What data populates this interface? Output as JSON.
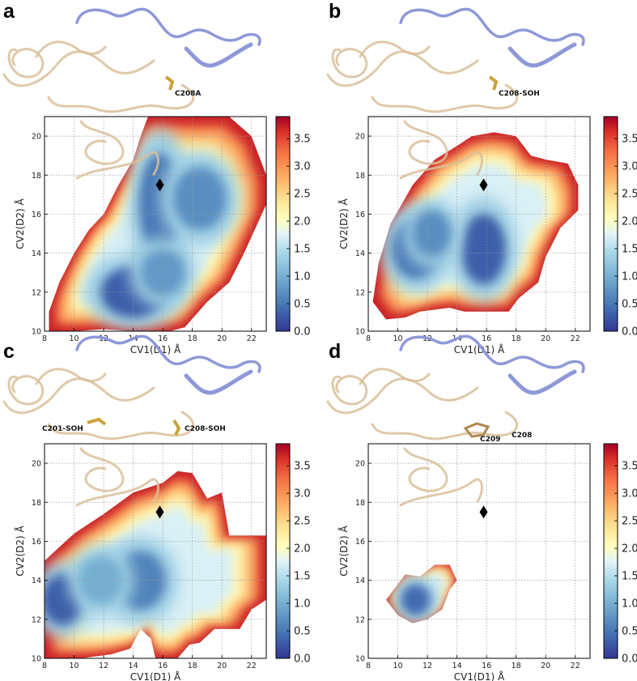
{
  "chart_data": [
    {
      "panel": "a",
      "type": "heatmap",
      "xlabel": "CV1(D1) Å",
      "ylabel": "CV2(D2) Å",
      "xlim": [
        8,
        23
      ],
      "ylim": [
        10,
        21
      ],
      "xticks": [
        8,
        10,
        12,
        14,
        16,
        18,
        20,
        22
      ],
      "yticks": [
        10,
        12,
        14,
        16,
        18,
        20
      ],
      "colorbar": {
        "ticks": [
          "0.0",
          "0.5",
          "1.0",
          "1.5",
          "2.0",
          "2.5",
          "3.0",
          "3.5"
        ],
        "range": [
          0,
          3.9
        ]
      },
      "marker": {
        "shape": "diamond",
        "x": 15.8,
        "y": 17.5
      },
      "residue_labels": [
        "C208A"
      ],
      "outline": [
        [
          8.3,
          11
        ],
        [
          9,
          12.5
        ],
        [
          10,
          14
        ],
        [
          11,
          15.2
        ],
        [
          12,
          16
        ],
        [
          13,
          17.5
        ],
        [
          14,
          18.8
        ],
        [
          14.5,
          20
        ],
        [
          15,
          21
        ],
        [
          20.5,
          21
        ],
        [
          22,
          20
        ],
        [
          23,
          18
        ],
        [
          23,
          16.5
        ],
        [
          21.5,
          14
        ],
        [
          20.5,
          12.5
        ],
        [
          19,
          11.5
        ],
        [
          17.5,
          10.2
        ],
        [
          16.5,
          10
        ],
        [
          14,
          10
        ],
        [
          12,
          10.1
        ],
        [
          10,
          10
        ],
        [
          8.3,
          10
        ]
      ],
      "minima": [
        {
          "x": 14,
          "y": 12,
          "value": 0.1,
          "rx": 2.2,
          "ry": 1.3
        },
        {
          "x": 15.8,
          "y": 16.5,
          "value": 0.3,
          "rx": 1.4,
          "ry": 2.6
        },
        {
          "x": 18.5,
          "y": 16.8,
          "value": 0.5,
          "rx": 1.8,
          "ry": 1.6
        },
        {
          "x": 16,
          "y": 13,
          "value": 0.6,
          "rx": 1.5,
          "ry": 1.2
        }
      ]
    },
    {
      "panel": "b",
      "type": "heatmap",
      "xlabel": "CV1(D1) Å",
      "ylabel": "CV2(D2) Å",
      "xlim": [
        8,
        23
      ],
      "ylim": [
        10,
        21
      ],
      "xticks": [
        8,
        10,
        12,
        14,
        16,
        18,
        20,
        22
      ],
      "yticks": [
        10,
        12,
        14,
        16,
        18,
        20
      ],
      "colorbar": {
        "ticks": [
          "0.0",
          "0.5",
          "1.0",
          "1.5",
          "2.0",
          "2.5",
          "3.0",
          "3.5"
        ],
        "range": [
          0,
          3.9
        ]
      },
      "marker": {
        "shape": "diamond",
        "x": 15.8,
        "y": 17.5
      },
      "residue_labels": [
        "C208-SOH"
      ],
      "outline": [
        [
          8.3,
          11.5
        ],
        [
          8.7,
          13.5
        ],
        [
          9.5,
          15.5
        ],
        [
          11,
          17.5
        ],
        [
          12.5,
          18.8
        ],
        [
          14,
          19.5
        ],
        [
          15,
          20
        ],
        [
          16.5,
          20.2
        ],
        [
          18,
          20
        ],
        [
          19,
          19
        ],
        [
          20,
          18.8
        ],
        [
          21.5,
          18.6
        ],
        [
          22.2,
          17.5
        ],
        [
          22.2,
          16.2
        ],
        [
          21,
          15.3
        ],
        [
          20,
          13.8
        ],
        [
          19.5,
          12.5
        ],
        [
          18.2,
          11.7
        ],
        [
          17.5,
          11
        ],
        [
          14.5,
          11
        ],
        [
          13.5,
          11.2
        ],
        [
          11.5,
          11
        ],
        [
          10.5,
          10.7
        ],
        [
          9.2,
          10.6
        ]
      ],
      "minima": [
        {
          "x": 15.8,
          "y": 14.2,
          "value": 0.1,
          "rx": 1.5,
          "ry": 1.8
        },
        {
          "x": 11.2,
          "y": 14.2,
          "value": 0.3,
          "rx": 1.6,
          "ry": 1.5
        },
        {
          "x": 12.3,
          "y": 15,
          "value": 0.5,
          "rx": 1.3,
          "ry": 1.2
        }
      ]
    },
    {
      "panel": "c",
      "type": "heatmap",
      "xlabel": "CV1(D1) Å",
      "ylabel": "CV2(D2) Å",
      "xlim": [
        8,
        23
      ],
      "ylim": [
        10,
        21
      ],
      "xticks": [
        8,
        10,
        12,
        14,
        16,
        18,
        20,
        22
      ],
      "yticks": [
        10,
        12,
        14,
        16,
        18,
        20
      ],
      "colorbar": {
        "ticks": [
          "0.0",
          "0.5",
          "1.0",
          "1.5",
          "2.0",
          "2.5",
          "3.0",
          "3.5"
        ],
        "range": [
          0,
          3.9
        ]
      },
      "marker": {
        "shape": "diamond",
        "x": 15.8,
        "y": 17.5
      },
      "residue_labels": [
        "C201-SOH",
        "C208-SOH"
      ],
      "outline": [
        [
          8,
          15
        ],
        [
          9,
          15.7
        ],
        [
          10,
          16.4
        ],
        [
          12,
          17.4
        ],
        [
          14,
          18.5
        ],
        [
          16,
          19
        ],
        [
          17,
          19.6
        ],
        [
          18,
          19.5
        ],
        [
          19,
          18.2
        ],
        [
          20,
          18.5
        ],
        [
          20.5,
          16.3
        ],
        [
          23,
          16.3
        ],
        [
          23,
          13
        ],
        [
          22,
          12.5
        ],
        [
          21.2,
          11.5
        ],
        [
          19.5,
          11.5
        ],
        [
          18.5,
          10.8
        ],
        [
          17.8,
          10.7
        ],
        [
          17,
          10
        ],
        [
          15.5,
          10
        ],
        [
          15.2,
          11
        ],
        [
          14.5,
          11.5
        ],
        [
          13.8,
          10.5
        ],
        [
          12.5,
          10.2
        ],
        [
          10.5,
          10
        ],
        [
          8,
          10
        ]
      ],
      "minima": [
        {
          "x": 9.2,
          "y": 13,
          "value": 0.1,
          "rx": 1.4,
          "ry": 1.3
        },
        {
          "x": 14.5,
          "y": 14,
          "value": 0.4,
          "rx": 1.7,
          "ry": 1.5
        },
        {
          "x": 11.8,
          "y": 14,
          "value": 0.8,
          "rx": 1.5,
          "ry": 1.2
        }
      ]
    },
    {
      "panel": "d",
      "type": "heatmap",
      "xlabel": "CV1(D1) Å",
      "ylabel": "CV2(D2) Å",
      "xlim": [
        8,
        23
      ],
      "ylim": [
        10,
        21
      ],
      "xticks": [
        8,
        10,
        12,
        14,
        16,
        18,
        20,
        22
      ],
      "yticks": [
        10,
        12,
        14,
        16,
        18,
        20
      ],
      "colorbar": {
        "ticks": [
          "0.0",
          "0.5",
          "1.0",
          "1.5",
          "2.0",
          "2.5",
          "3.0",
          "3.5"
        ],
        "range": [
          0,
          3.9
        ]
      },
      "marker": {
        "shape": "diamond",
        "x": 15.8,
        "y": 17.5
      },
      "residue_labels": [
        "C209",
        "C208"
      ],
      "outline": [
        [
          9.2,
          13
        ],
        [
          10.5,
          14.3
        ],
        [
          11.5,
          14.2
        ],
        [
          12.5,
          14.8
        ],
        [
          13.5,
          14.8
        ],
        [
          14,
          14
        ],
        [
          13.5,
          13.5
        ],
        [
          13,
          12.5
        ],
        [
          12,
          12
        ],
        [
          11,
          11.8
        ],
        [
          10,
          12.2
        ]
      ],
      "minima": [
        {
          "x": 11.2,
          "y": 13,
          "value": 0.2,
          "rx": 1.0,
          "ry": 0.8
        }
      ]
    }
  ]
}
